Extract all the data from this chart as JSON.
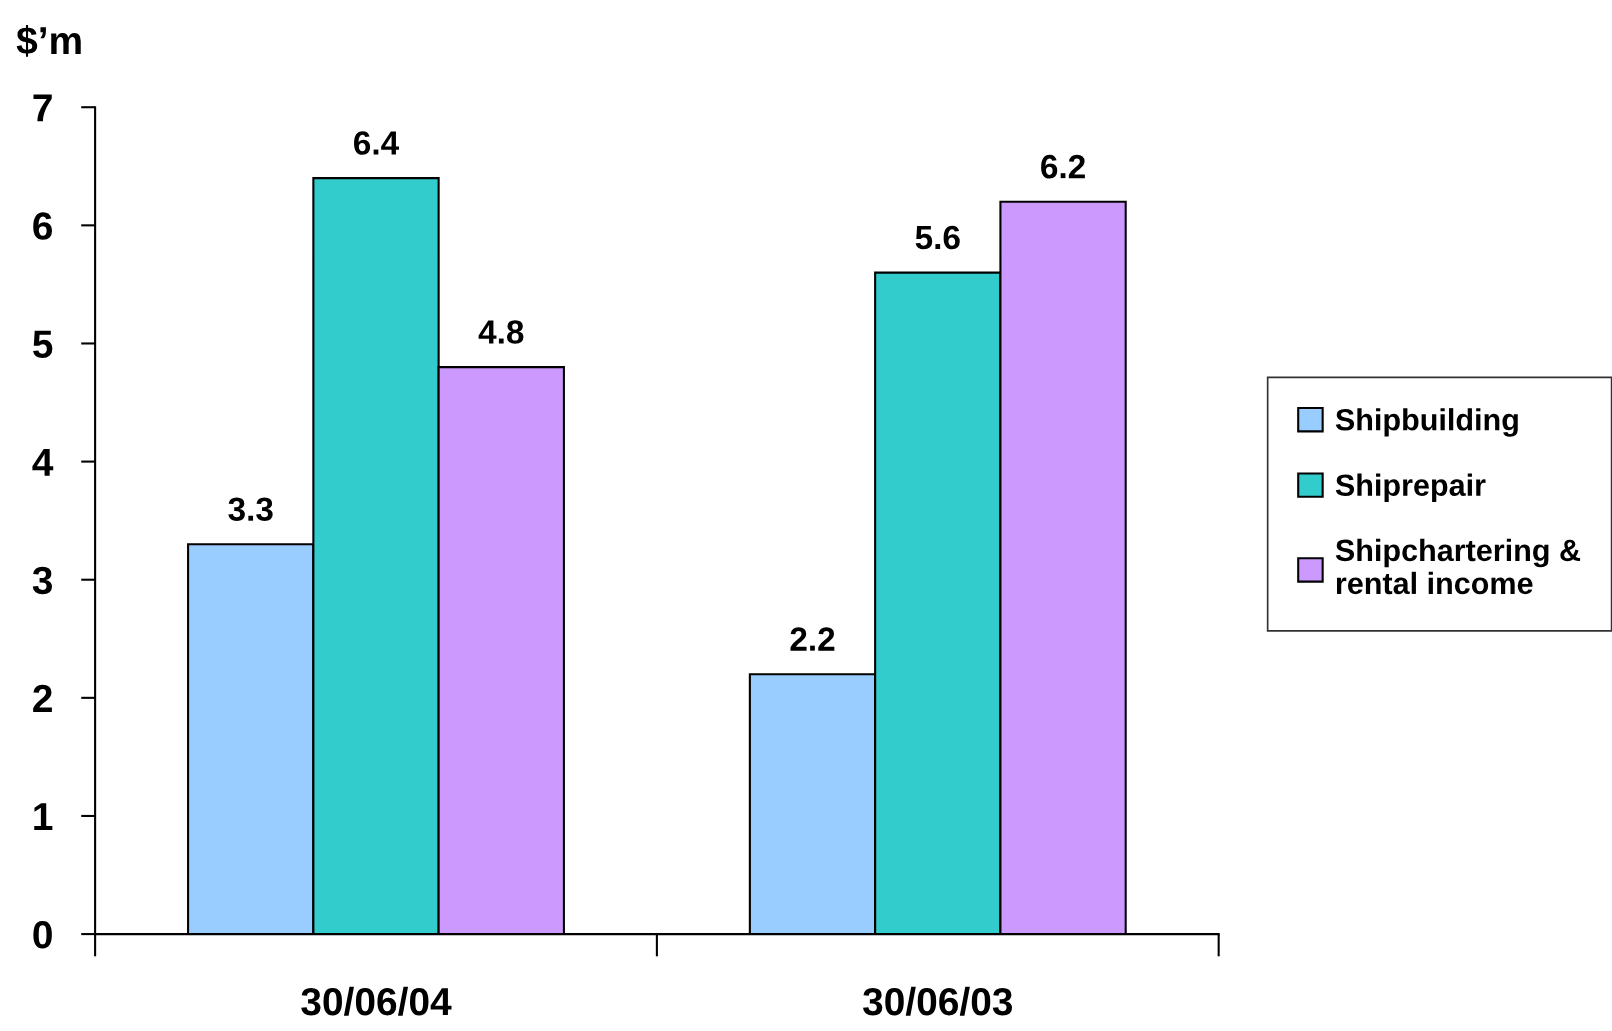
{
  "chart_data": {
    "type": "bar",
    "ylabel": "$’m",
    "categories": [
      "30/06/04",
      "30/06/03"
    ],
    "series": [
      {
        "name": "Shipbuilding",
        "color": "#99ccff",
        "values": [
          3.3,
          2.2
        ]
      },
      {
        "name": "Shiprepair",
        "color": "#33cccc",
        "values": [
          6.4,
          5.6
        ]
      },
      {
        "name": "Shipchartering &\nrental income",
        "color": "#cc99ff",
        "values": [
          4.8,
          6.2
        ]
      }
    ],
    "ylim": [
      0,
      7
    ],
    "yticks": [
      0,
      1,
      2,
      3,
      4,
      5,
      6,
      7
    ],
    "grid": false,
    "legend": "right",
    "data_labels": true
  }
}
